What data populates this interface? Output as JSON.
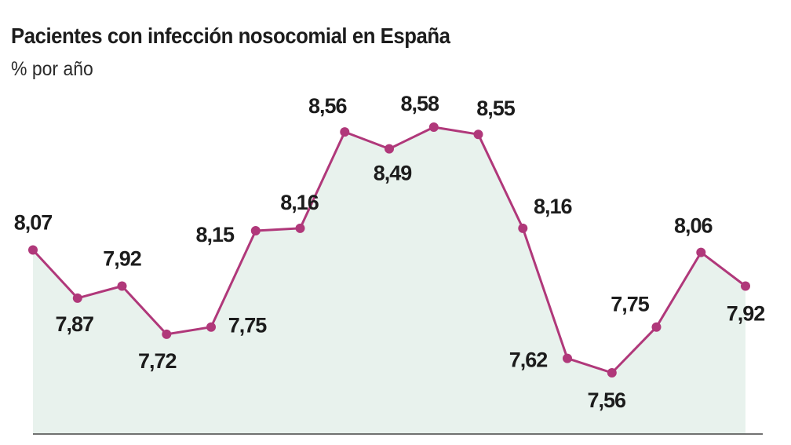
{
  "header": {
    "title": "Pacientes con infección nosocomial en España",
    "subtitle": "% por año"
  },
  "colors": {
    "line": "#b0387a",
    "area": "#e8f2ed",
    "baseline": "#444444",
    "text": "#1c1c1c"
  },
  "chart_data": {
    "type": "area",
    "title": "Pacientes con infección nosocomial en España",
    "subtitle": "% por año",
    "xlabel": "",
    "ylabel": "",
    "grid": false,
    "legend": "none",
    "ylim": [
      7.0,
      8.8
    ],
    "series": [
      {
        "values": [
          8.07,
          7.87,
          7.92,
          7.72,
          7.75,
          8.15,
          8.16,
          8.56,
          8.49,
          8.58,
          8.55,
          8.16,
          7.62,
          7.56,
          7.75,
          8.06,
          7.92
        ],
        "labels": [
          "8,07",
          "7,87",
          "7,92",
          "7,72",
          "7,75",
          "8,15",
          "8,16",
          "8,56",
          "8,49",
          "8,58",
          "8,55",
          "8,16",
          "7,62",
          "7,56",
          "7,75",
          "8,06",
          "7,92"
        ]
      }
    ]
  }
}
